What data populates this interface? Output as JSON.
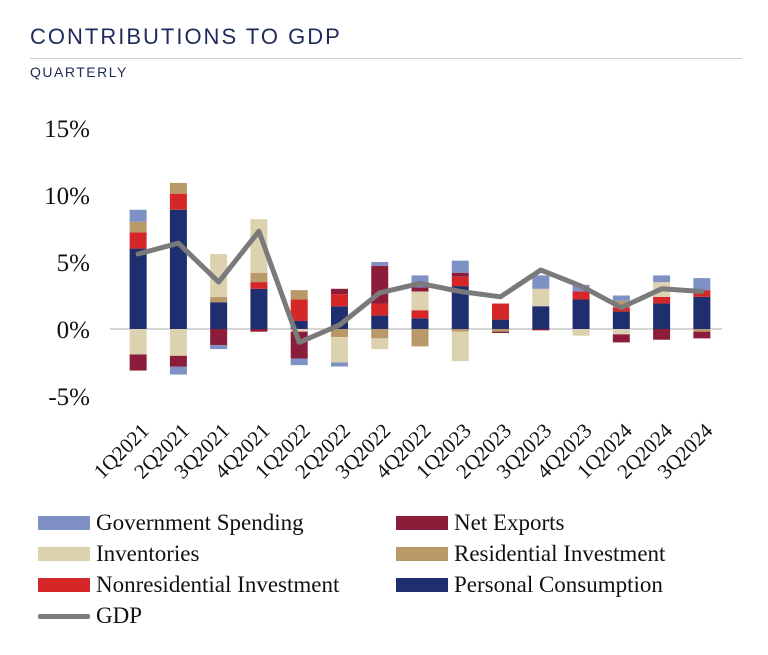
{
  "header": {
    "title": "CONTRIBUTIONS TO GDP",
    "subtitle": "QUARTERLY"
  },
  "chart_data": {
    "type": "bar",
    "stacked": true,
    "categories": [
      "1Q2021",
      "2Q2021",
      "3Q2021",
      "4Q2021",
      "1Q2022",
      "2Q2022",
      "3Q2022",
      "4Q2022",
      "1Q2023",
      "2Q2023",
      "3Q2023",
      "4Q2023",
      "1Q2024",
      "2Q2024",
      "3Q2024"
    ],
    "y_ticks": [
      "15%",
      "10%",
      "5%",
      "0%",
      "-5%"
    ],
    "ylim": [
      -5,
      15
    ],
    "series": [
      {
        "name": "Personal Consumption",
        "color": "#1f2e6e",
        "values": [
          6.0,
          8.9,
          2.0,
          3.0,
          0.6,
          1.7,
          1.0,
          0.8,
          3.2,
          0.7,
          1.7,
          2.2,
          1.3,
          1.9,
          2.4
        ]
      },
      {
        "name": "Nonresidential Investment",
        "color": "#d62728",
        "values": [
          1.2,
          1.2,
          0.0,
          0.5,
          1.6,
          0.9,
          0.9,
          0.6,
          0.7,
          1.2,
          0.0,
          0.6,
          0.3,
          0.5,
          0.5
        ]
      },
      {
        "name": "Residential Investment",
        "color": "#b89967",
        "values": [
          0.8,
          0.8,
          0.4,
          0.7,
          0.7,
          -0.6,
          -0.7,
          -1.3,
          -0.2,
          -0.2,
          0.0,
          0.0,
          0.5,
          0.0,
          -0.2
        ]
      },
      {
        "name": "Inventories",
        "color": "#ddd2b0",
        "values": [
          -1.9,
          -2.0,
          3.2,
          4.0,
          -0.2,
          -1.9,
          -0.8,
          1.4,
          -2.2,
          0.0,
          1.3,
          -0.5,
          -0.4,
          1.1,
          0.0
        ]
      },
      {
        "name": "Net Exports",
        "color": "#8c1d3a",
        "values": [
          -1.2,
          -0.8,
          -1.2,
          -0.2,
          -2.0,
          0.4,
          2.8,
          0.3,
          0.3,
          -0.1,
          -0.1,
          0.0,
          -0.6,
          -0.8,
          -0.5
        ]
      },
      {
        "name": "Government Spending",
        "color": "#7f91c4",
        "values": [
          0.9,
          -0.6,
          -0.3,
          0.0,
          -0.5,
          -0.3,
          0.3,
          0.9,
          0.9,
          0.0,
          1.0,
          0.5,
          0.4,
          0.5,
          0.9
        ]
      }
    ],
    "gdp": {
      "name": "GDP",
      "color": "#7a7a7a",
      "values": [
        5.6,
        6.4,
        3.5,
        7.3,
        -1.0,
        0.3,
        2.7,
        3.4,
        2.8,
        2.4,
        4.4,
        3.2,
        1.6,
        3.0,
        2.8
      ]
    },
    "legend": [
      {
        "name": "Government Spending",
        "color": "#7f91c4",
        "kind": "bar"
      },
      {
        "name": "Net Exports",
        "color": "#8c1d3a",
        "kind": "bar"
      },
      {
        "name": "Inventories",
        "color": "#ddd2b0",
        "kind": "bar"
      },
      {
        "name": "Residential Investment",
        "color": "#b89967",
        "kind": "bar"
      },
      {
        "name": "Nonresidential Investment",
        "color": "#d62728",
        "kind": "bar"
      },
      {
        "name": "Personal Consumption",
        "color": "#1f2e6e",
        "kind": "bar"
      },
      {
        "name": "GDP",
        "color": "#7a7a7a",
        "kind": "line"
      }
    ],
    "grid": false,
    "legend_position": "bottom"
  }
}
